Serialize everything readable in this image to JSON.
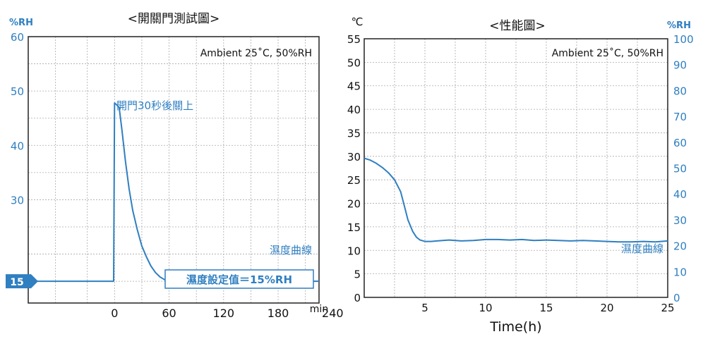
{
  "colors": {
    "accent": "#2f7fc1",
    "text": "#111111",
    "grid": "#aaaaaa",
    "frame": "#222222",
    "background": "#ffffff"
  },
  "chart_data": [
    {
      "type": "line",
      "title": "<開關門測試圖>",
      "ylabel": "%RH",
      "xlabel": "min",
      "annotation_condition": "Ambient 25˚C, 50%RH",
      "annotation_event": "開門30秒後關上",
      "curve_label": "濕度曲線",
      "setpoint_label": "濕度設定值＝15%RH",
      "setpoint_marker": "15",
      "xlim": [
        -95,
        225
      ],
      "ylim": [
        11,
        60
      ],
      "x_ticks": [
        0,
        60,
        120,
        180,
        240
      ],
      "x_tick_labels": [
        "0",
        "60",
        "120",
        "180",
        "240"
      ],
      "y_ticks": [
        30,
        40,
        50,
        60
      ],
      "y_tick_labels": [
        "30",
        "40",
        "50",
        "60"
      ],
      "grid": true,
      "series": [
        {
          "x": [
            -95,
            -1,
            0,
            2,
            5,
            8,
            12,
            16,
            20,
            25,
            30,
            35,
            40,
            45,
            50,
            55,
            60,
            70,
            90,
            130,
            180,
            225
          ],
          "values": [
            15,
            15,
            47.8,
            47.5,
            47.0,
            43,
            37,
            32,
            28,
            24.5,
            21.5,
            19.5,
            17.8,
            16.6,
            15.8,
            15.3,
            15.1,
            15,
            15,
            15,
            15,
            15
          ]
        }
      ]
    },
    {
      "type": "line",
      "title": "<性能圖>",
      "ylabel": "℃",
      "ylabel_right": "%RH",
      "xlabel": "Time(h)",
      "annotation_condition": "Ambient 25˚C, 50%RH",
      "curve_label": "濕度曲線",
      "xlim": [
        0,
        25
      ],
      "ylim": [
        0,
        55
      ],
      "ylim_right": [
        0,
        100
      ],
      "x_ticks": [
        0,
        5,
        10,
        15,
        20,
        25
      ],
      "x_tick_labels": [
        "0",
        "5",
        "10",
        "15",
        "20",
        "25"
      ],
      "y_ticks": [
        0,
        5,
        10,
        15,
        20,
        25,
        30,
        35,
        40,
        45,
        50,
        55
      ],
      "y_tick_labels": [
        "0",
        "5",
        "10",
        "15",
        "20",
        "25",
        "30",
        "35",
        "40",
        "45",
        "50",
        "55"
      ],
      "y_right_ticks": [
        0,
        10,
        20,
        30,
        40,
        50,
        60,
        70,
        80,
        90,
        100
      ],
      "y_right_tick_labels": [
        "0",
        "10",
        "20",
        "30",
        "40",
        "50",
        "60",
        "70",
        "80",
        "90",
        "100"
      ],
      "grid": true,
      "series": [
        {
          "x": [
            0,
            0.5,
            1,
            1.5,
            2,
            2.5,
            3,
            3.3,
            3.6,
            4,
            4.3,
            4.6,
            5,
            5.5,
            6,
            7,
            8,
            9,
            10,
            11,
            12,
            13,
            14,
            15,
            16,
            17,
            18,
            19,
            20,
            21,
            22,
            23,
            24,
            25
          ],
          "values": [
            29.6,
            29.2,
            28.5,
            27.6,
            26.5,
            25.0,
            22.5,
            19.5,
            16.5,
            14.0,
            12.8,
            12.2,
            11.9,
            11.9,
            12.0,
            12.2,
            12.0,
            12.1,
            12.3,
            12.3,
            12.2,
            12.3,
            12.1,
            12.2,
            12.1,
            12.0,
            12.1,
            12.0,
            11.9,
            11.8,
            11.8,
            11.9,
            11.8,
            12.0
          ]
        }
      ]
    }
  ]
}
